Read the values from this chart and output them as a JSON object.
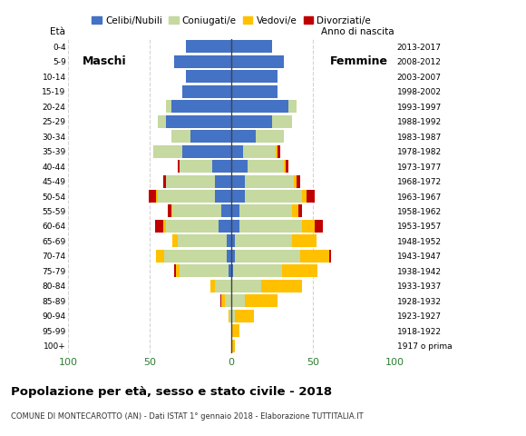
{
  "age_groups": [
    "100+",
    "95-99",
    "90-94",
    "85-89",
    "80-84",
    "75-79",
    "70-74",
    "65-69",
    "60-64",
    "55-59",
    "50-54",
    "45-49",
    "40-44",
    "35-39",
    "30-34",
    "25-29",
    "20-24",
    "15-19",
    "10-14",
    "5-9",
    "0-4"
  ],
  "birth_years": [
    "1917 o prima",
    "1918-1922",
    "1923-1927",
    "1928-1932",
    "1933-1937",
    "1938-1942",
    "1943-1947",
    "1948-1952",
    "1953-1957",
    "1958-1962",
    "1963-1967",
    "1968-1972",
    "1973-1977",
    "1978-1982",
    "1983-1987",
    "1988-1992",
    "1993-1997",
    "1998-2002",
    "2003-2007",
    "2008-2012",
    "2013-2017"
  ],
  "colors": {
    "celibe": "#4472c4",
    "coniugato": "#c5d9a0",
    "vedovo": "#ffc000",
    "divorziato": "#c00000"
  },
  "males": {
    "celibe": [
      0,
      0,
      0,
      0,
      0,
      2,
      3,
      3,
      8,
      6,
      10,
      10,
      12,
      30,
      25,
      40,
      37,
      30,
      28,
      35,
      28
    ],
    "coniugato": [
      0,
      0,
      1,
      4,
      10,
      30,
      38,
      30,
      32,
      30,
      35,
      30,
      20,
      18,
      12,
      5,
      3,
      0,
      0,
      0,
      0
    ],
    "vedovo": [
      0,
      0,
      1,
      2,
      3,
      2,
      5,
      3,
      2,
      1,
      1,
      0,
      0,
      0,
      0,
      0,
      0,
      0,
      0,
      0,
      0
    ],
    "divorziato": [
      0,
      0,
      0,
      1,
      0,
      1,
      0,
      0,
      5,
      2,
      5,
      2,
      1,
      0,
      0,
      0,
      0,
      0,
      0,
      0,
      0
    ]
  },
  "females": {
    "nubile": [
      0,
      0,
      0,
      0,
      0,
      1,
      2,
      2,
      5,
      5,
      8,
      8,
      10,
      7,
      15,
      25,
      35,
      28,
      28,
      32,
      25
    ],
    "coniugata": [
      0,
      0,
      2,
      8,
      18,
      30,
      40,
      35,
      38,
      32,
      35,
      30,
      22,
      20,
      17,
      12,
      5,
      0,
      0,
      0,
      0
    ],
    "vedova": [
      2,
      5,
      12,
      20,
      25,
      22,
      18,
      15,
      8,
      4,
      3,
      2,
      1,
      1,
      0,
      0,
      0,
      0,
      0,
      0,
      0
    ],
    "divorziata": [
      0,
      0,
      0,
      0,
      0,
      0,
      1,
      0,
      5,
      2,
      5,
      2,
      2,
      2,
      0,
      0,
      0,
      0,
      0,
      0,
      0
    ]
  },
  "xlim": 100,
  "title": "Popolazione per età, sesso e stato civile - 2018",
  "subtitle": "COMUNE DI MONTECAROTTO (AN) - Dati ISTAT 1° gennaio 2018 - Elaborazione TUTTITALIA.IT",
  "legend_labels": [
    "Celibi/Nubili",
    "Coniugati/e",
    "Vedovi/e",
    "Divorziati/e"
  ]
}
